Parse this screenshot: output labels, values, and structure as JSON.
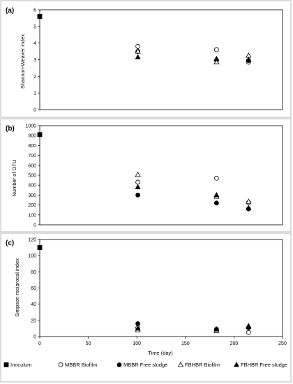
{
  "chart_data": [
    {
      "type": "scatter",
      "panel_label": "(a)",
      "title": "",
      "xlabel": "",
      "ylabel": "Shannon-Weaver index",
      "xlim": [
        0,
        250
      ],
      "ylim": [
        0,
        6
      ],
      "y_ticks": [
        "0",
        "1",
        "2",
        "3",
        "4",
        "5",
        "6"
      ],
      "x_ticks": [],
      "grid": false,
      "series": [
        {
          "name": "Inoculum",
          "marker": "square-filled",
          "points": [
            {
              "x": 0,
              "y": 5.6
            }
          ]
        },
        {
          "name": "MBBR Biofilm",
          "marker": "circle-open",
          "points": [
            {
              "x": 101,
              "y": 3.8
            },
            {
              "x": 182,
              "y": 3.6
            },
            {
              "x": 215,
              "y": 2.85
            }
          ]
        },
        {
          "name": "MBBR Free sludge",
          "marker": "circle-filled",
          "points": [
            {
              "x": 101,
              "y": 3.5
            },
            {
              "x": 182,
              "y": 2.95
            },
            {
              "x": 215,
              "y": 2.95
            }
          ]
        },
        {
          "name": "FBHBR Biofilm",
          "marker": "triangle-open",
          "points": [
            {
              "x": 101,
              "y": 3.5
            },
            {
              "x": 182,
              "y": 2.85
            },
            {
              "x": 215,
              "y": 3.25
            }
          ]
        },
        {
          "name": "FBHBR Free sludge",
          "marker": "triangle-filled",
          "points": [
            {
              "x": 101,
              "y": 3.15
            },
            {
              "x": 182,
              "y": 3.05
            },
            {
              "x": 215,
              "y": 3.0
            }
          ]
        }
      ]
    },
    {
      "type": "scatter",
      "panel_label": "(b)",
      "title": "",
      "xlabel": "",
      "ylabel": "Number of OTU",
      "xlim": [
        0,
        250
      ],
      "ylim": [
        0,
        1000
      ],
      "y_ticks": [
        "0",
        "100",
        "200",
        "300",
        "400",
        "500",
        "600",
        "700",
        "800",
        "900",
        "1000"
      ],
      "x_ticks": [],
      "grid": false,
      "series": [
        {
          "name": "Inoculum",
          "marker": "square-filled",
          "points": [
            {
              "x": 0,
              "y": 910
            }
          ]
        },
        {
          "name": "MBBR Biofilm",
          "marker": "circle-open",
          "points": [
            {
              "x": 101,
              "y": 430
            },
            {
              "x": 182,
              "y": 470
            },
            {
              "x": 215,
              "y": 225
            }
          ]
        },
        {
          "name": "MBBR Free sludge",
          "marker": "circle-filled",
          "points": [
            {
              "x": 101,
              "y": 300
            },
            {
              "x": 182,
              "y": 220
            },
            {
              "x": 215,
              "y": 160
            }
          ]
        },
        {
          "name": "FBHBR Biofilm",
          "marker": "triangle-open",
          "points": [
            {
              "x": 101,
              "y": 505
            },
            {
              "x": 182,
              "y": 285
            },
            {
              "x": 215,
              "y": 235
            }
          ]
        },
        {
          "name": "FBHBR Free sludge",
          "marker": "triangle-filled",
          "points": [
            {
              "x": 101,
              "y": 380
            },
            {
              "x": 182,
              "y": 300
            },
            {
              "x": 215,
              "y": 170
            }
          ]
        }
      ]
    },
    {
      "type": "scatter",
      "panel_label": "(c)",
      "title": "",
      "xlabel": "Time (day)",
      "ylabel": "Simpson reciprocal index",
      "xlim": [
        0,
        250
      ],
      "ylim": [
        0,
        120
      ],
      "y_ticks": [
        "0",
        "20",
        "40",
        "60",
        "80",
        "100",
        "120"
      ],
      "x_ticks": [
        "0",
        "50",
        "100",
        "150",
        "200",
        "250"
      ],
      "grid": false,
      "series": [
        {
          "name": "Inoculum",
          "marker": "square-filled",
          "points": [
            {
              "x": 0,
              "y": 110
            }
          ]
        },
        {
          "name": "MBBR Biofilm",
          "marker": "circle-open",
          "points": [
            {
              "x": 101,
              "y": 11
            },
            {
              "x": 182,
              "y": 8
            },
            {
              "x": 215,
              "y": 5
            }
          ]
        },
        {
          "name": "MBBR Free sludge",
          "marker": "circle-filled",
          "points": [
            {
              "x": 101,
              "y": 16
            },
            {
              "x": 182,
              "y": 9
            },
            {
              "x": 215,
              "y": 11
            }
          ]
        },
        {
          "name": "FBHBR Biofilm",
          "marker": "triangle-open",
          "points": [
            {
              "x": 101,
              "y": 8
            },
            {
              "x": 182,
              "y": 7
            },
            {
              "x": 215,
              "y": 13
            }
          ]
        },
        {
          "name": "FBHBR Free sludge",
          "marker": "triangle-filled",
          "points": [
            {
              "x": 101,
              "y": 10
            },
            {
              "x": 182,
              "y": 9
            },
            {
              "x": 215,
              "y": 12
            }
          ]
        }
      ]
    }
  ],
  "legend": {
    "placement": "bottom",
    "entries": [
      {
        "label": "Inoculum",
        "marker": "square-filled"
      },
      {
        "label": "MBBR Biofilm",
        "marker": "circle-open"
      },
      {
        "label": "MBBR Free sludge",
        "marker": "circle-filled"
      },
      {
        "label": "FBHBR Biofilm",
        "marker": "triangle-open"
      },
      {
        "label": "FBHBR Free sludge",
        "marker": "triangle-filled"
      }
    ]
  }
}
